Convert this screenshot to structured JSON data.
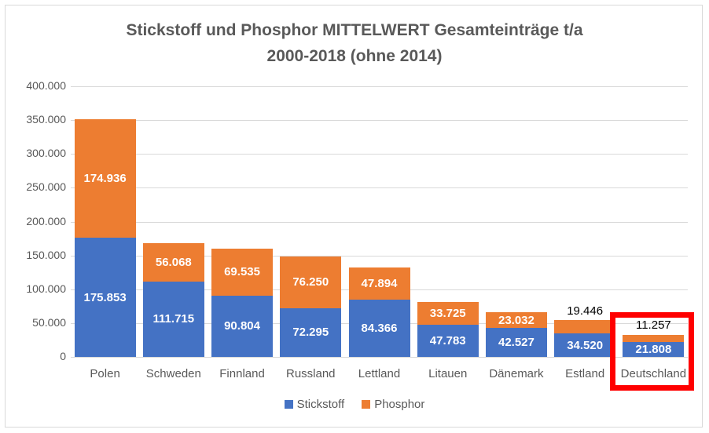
{
  "chart_data": {
    "type": "bar",
    "stacked": true,
    "title": "Stickstoff und Phosphor MITTELWERT Gesamteinträge t/a 2000-2018 (ohne 2014)",
    "title_lines": [
      "Stickstoff und Phosphor MITTELWERT Gesamteinträge t/a",
      "2000-2018  (ohne 2014)"
    ],
    "xlabel": "",
    "ylabel": "",
    "ylim": [
      0,
      400000
    ],
    "yticks": [
      0,
      50000,
      100000,
      150000,
      200000,
      250000,
      300000,
      350000,
      400000
    ],
    "ytick_labels": [
      "0",
      "50.000",
      "100.000",
      "150.000",
      "200.000",
      "250.000",
      "300.000",
      "350.000",
      "400.000"
    ],
    "grid": true,
    "legend_position": "bottom",
    "categories": [
      "Polen",
      "Schweden",
      "Finnland",
      "Russland",
      "Lettland",
      "Litauen",
      "Dänemark",
      "Estland",
      "Deutschland"
    ],
    "series": [
      {
        "name": "Stickstoff",
        "color": "#4472C4",
        "values": [
          175853,
          111715,
          90804,
          72295,
          84366,
          47783,
          42527,
          34520,
          21808
        ],
        "labels": [
          "175.853",
          "111.715",
          "90.804",
          "72.295",
          "84.366",
          "47.783",
          "42.527",
          "34.520",
          "21.808"
        ]
      },
      {
        "name": "Phosphor",
        "color": "#ED7D31",
        "values": [
          174936,
          56068,
          69535,
          76250,
          47894,
          33725,
          23032,
          19446,
          11257
        ],
        "labels": [
          "174.936",
          "56.068",
          "69.535",
          "76.250",
          "47.894",
          "33.725",
          "23.032",
          "19.446",
          "11.257"
        ]
      }
    ],
    "annotations": [
      {
        "type": "highlight-box",
        "target": "Deutschland",
        "color": "#FF0000"
      }
    ]
  },
  "legend": {
    "items": [
      {
        "label": "Stickstoff",
        "color": "#4472C4"
      },
      {
        "label": "Phosphor",
        "color": "#ED7D31"
      }
    ]
  }
}
